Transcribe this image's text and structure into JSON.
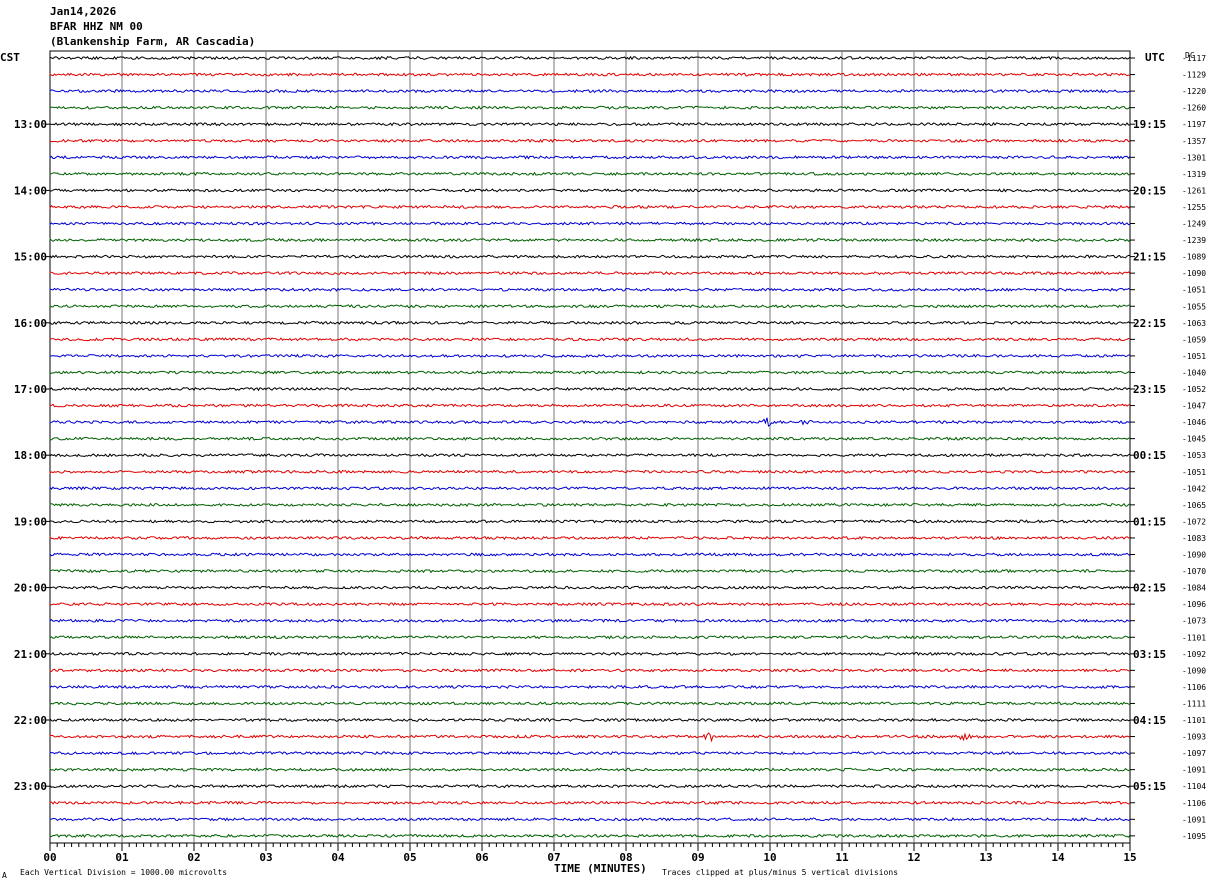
{
  "header": {
    "date": "Jan14,2026",
    "station": "BFAR HHZ NM 00",
    "location": "(Blankenship Farm, AR Cascadia)"
  },
  "labels": {
    "left_tz": "CST",
    "right_tz": "UTC",
    "dc": "DC",
    "xlabel": "TIME (MINUTES)",
    "scale_note": "Each Vertical Division = 1000.00 microvolts",
    "clip_note": "Traces clipped at plus/minus 5 vertical divisions",
    "corner_mark": "A"
  },
  "chart_data": {
    "type": "line",
    "title": "BFAR HHZ NM 00",
    "xlabel": "TIME (MINUTES)",
    "ylabel": "",
    "xlim": [
      0,
      15
    ],
    "x_ticks": [
      "00",
      "01",
      "02",
      "03",
      "04",
      "05",
      "06",
      "07",
      "08",
      "09",
      "10",
      "11",
      "12",
      "13",
      "14",
      "15"
    ],
    "trace_colors": [
      "#000000",
      "#e00000",
      "#0000d0",
      "#006000"
    ],
    "left_hour_labels": [
      "13:00",
      "14:00",
      "15:00",
      "16:00",
      "17:00",
      "18:00",
      "19:00",
      "20:00",
      "21:00",
      "22:00",
      "23:00"
    ],
    "right_hour_labels": [
      "19:15",
      "20:15",
      "21:15",
      "22:15",
      "23:15",
      "00:15",
      "01:15",
      "02:15",
      "03:15",
      "04:15",
      "05:15"
    ],
    "dc_offsets": [
      "-1117",
      "-1129",
      "-1220",
      "-1260",
      "-1197",
      "-1357",
      "-1301",
      "-1319",
      "-1261",
      "-1255",
      "-1249",
      "-1239",
      "-1089",
      "-1090",
      "-1051",
      "-1055",
      "-1063",
      "-1059",
      "-1051",
      "-1040",
      "-1052",
      "-1047",
      "-1046",
      "-1045",
      "-1053",
      "-1051",
      "-1042",
      "-1065",
      "-1072",
      "-1083",
      "-1090",
      "-1070",
      "-1084",
      "-1096",
      "-1073",
      "-1101",
      "-1092",
      "-1090",
      "-1106",
      "-1111",
      "-1101",
      "-1093",
      "-1097",
      "-1091",
      "-1104",
      "-1106",
      "-1091",
      "-1095"
    ],
    "events": [
      {
        "trace_index": 22,
        "minute": 9.95,
        "amplitude": 8
      },
      {
        "trace_index": 22,
        "minute": 10.5,
        "amplitude": 4
      },
      {
        "trace_index": 41,
        "minute": 9.15,
        "amplitude": 6
      },
      {
        "trace_index": 41,
        "minute": 12.7,
        "amplitude": 3
      }
    ],
    "grid": true
  }
}
